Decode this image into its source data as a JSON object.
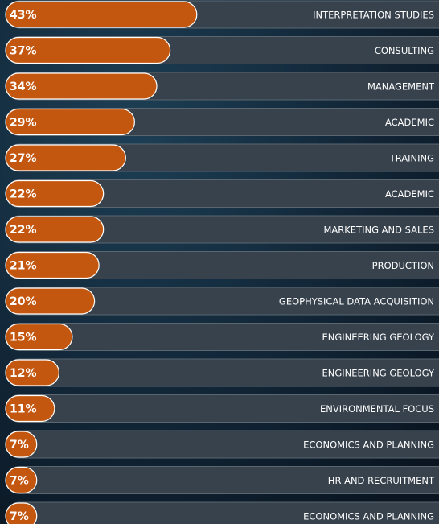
{
  "chart_data": {
    "type": "bar",
    "orientation": "horizontal",
    "categories": [
      "INTERPRETATION STUDIES",
      "CONSULTING",
      "MANAGEMENT",
      "ACADEMIC",
      "TRAINING",
      "ACADEMIC",
      "MARKETING AND SALES",
      "PRODUCTION",
      "GEOPHYSICAL DATA ACQUISITION",
      "ENGINEERING GEOLOGY",
      "ENGINEERING GEOLOGY",
      "ENVIRONMENTAL FOCUS",
      "ECONOMICS AND PLANNING",
      "HR AND RECRUITMENT",
      "ECONOMICS AND PLANNING"
    ],
    "values": [
      43,
      37,
      34,
      29,
      27,
      22,
      22,
      21,
      20,
      15,
      12,
      11,
      7,
      7,
      7
    ],
    "value_labels": [
      "43%",
      "37%",
      "34%",
      "29%",
      "27%",
      "22%",
      "22%",
      "21%",
      "20%",
      "15%",
      "12%",
      "11%",
      "7%",
      "7%",
      "7%"
    ],
    "color": "#c4570f",
    "track_color": "#37424c"
  }
}
